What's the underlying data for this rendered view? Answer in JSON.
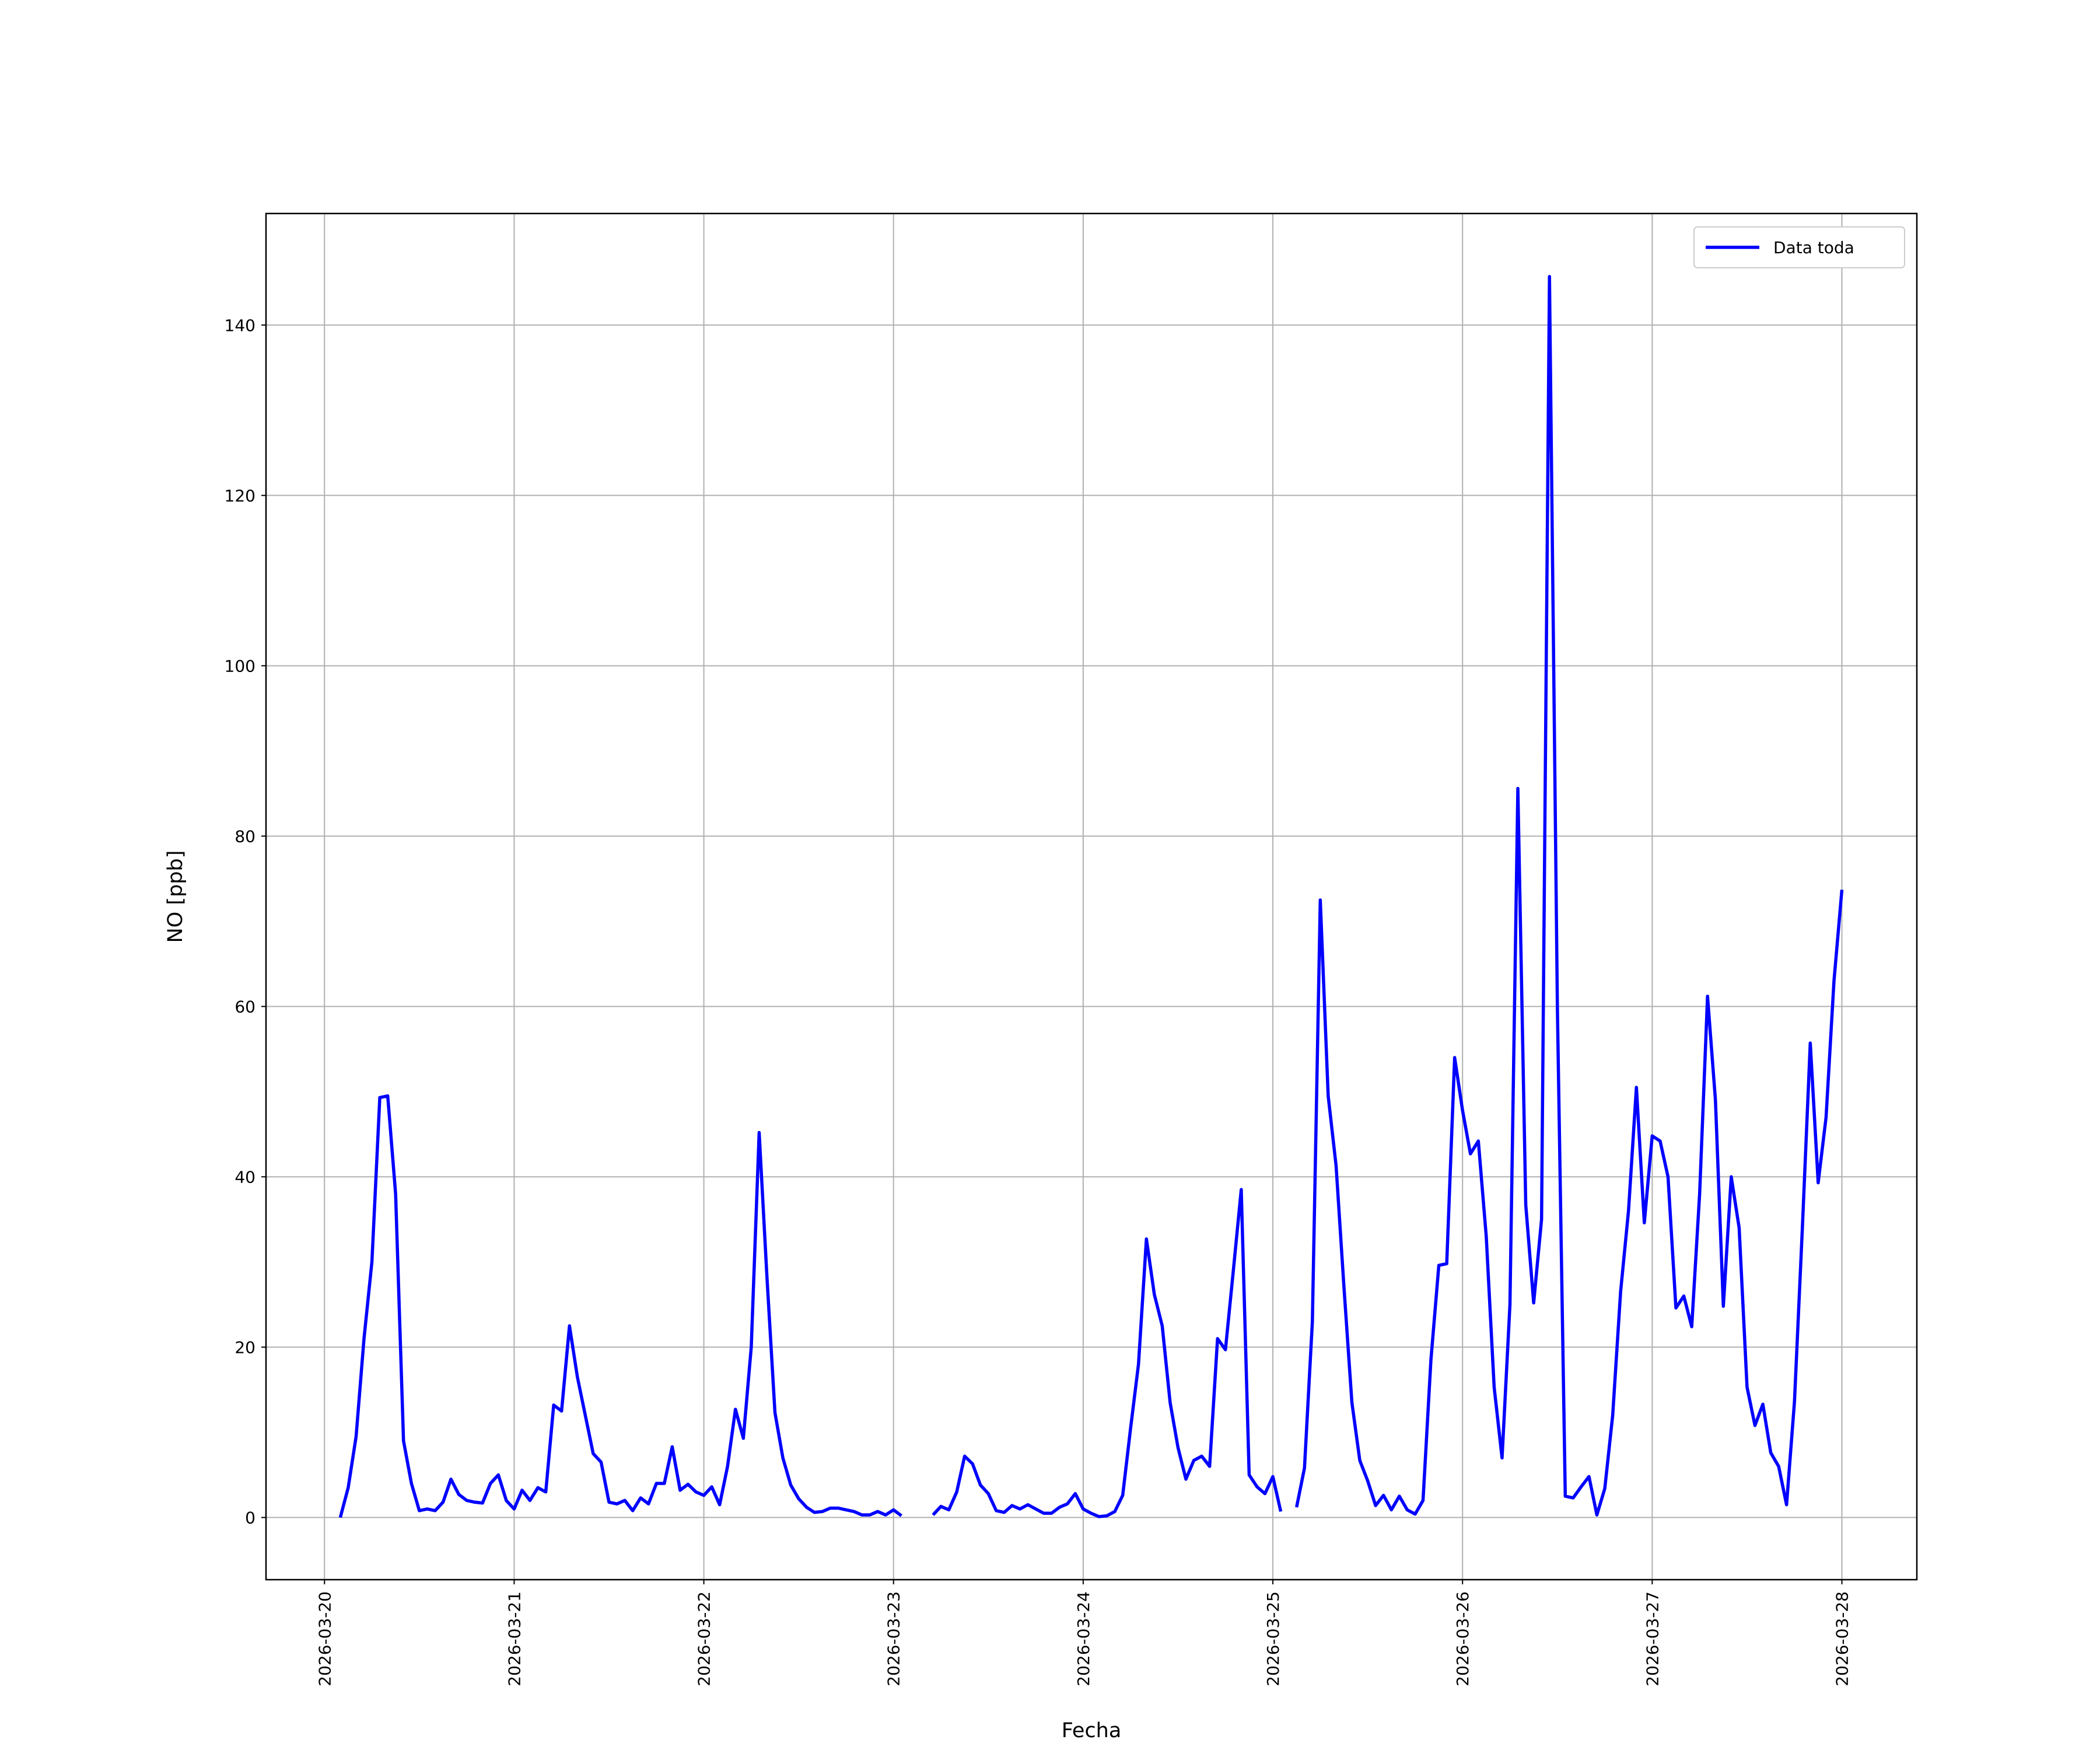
{
  "chart_data": {
    "type": "line",
    "xlabel": "Fecha",
    "ylabel": "NO [ppb]",
    "x": [
      "2026-03-20 02:00",
      "2026-03-20 03:00",
      "2026-03-20 04:00",
      "2026-03-20 05:00",
      "2026-03-20 06:00",
      "2026-03-20 07:00",
      "2026-03-20 08:00",
      "2026-03-20 09:00",
      "2026-03-20 10:00",
      "2026-03-20 11:00",
      "2026-03-20 12:00",
      "2026-03-20 13:00",
      "2026-03-20 14:00",
      "2026-03-20 15:00",
      "2026-03-20 16:00",
      "2026-03-20 17:00",
      "2026-03-20 18:00",
      "2026-03-20 19:00",
      "2026-03-20 20:00",
      "2026-03-20 21:00",
      "2026-03-20 22:00",
      "2026-03-20 23:00",
      "2026-03-21 00:00",
      "2026-03-21 01:00",
      "2026-03-21 02:00",
      "2026-03-21 03:00",
      "2026-03-21 04:00",
      "2026-03-21 05:00",
      "2026-03-21 06:00",
      "2026-03-21 07:00",
      "2026-03-21 08:00",
      "2026-03-21 09:00",
      "2026-03-21 10:00",
      "2026-03-21 11:00",
      "2026-03-21 12:00",
      "2026-03-21 13:00",
      "2026-03-21 14:00",
      "2026-03-21 15:00",
      "2026-03-21 16:00",
      "2026-03-21 17:00",
      "2026-03-21 18:00",
      "2026-03-21 19:00",
      "2026-03-21 20:00",
      "2026-03-21 21:00",
      "2026-03-21 22:00",
      "2026-03-21 23:00",
      "2026-03-22 00:00",
      "2026-03-22 01:00",
      "2026-03-22 02:00",
      "2026-03-22 03:00",
      "2026-03-22 04:00",
      "2026-03-22 05:00",
      "2026-03-22 06:00",
      "2026-03-22 07:00",
      "2026-03-22 08:00",
      "2026-03-22 09:00",
      "2026-03-22 10:00",
      "2026-03-22 11:00",
      "2026-03-22 12:00",
      "2026-03-22 13:00",
      "2026-03-22 14:00",
      "2026-03-22 15:00",
      "2026-03-22 16:00",
      "2026-03-22 17:00",
      "2026-03-22 18:00",
      "2026-03-22 19:00",
      "2026-03-22 20:00",
      "2026-03-22 21:00",
      "2026-03-22 22:00",
      "2026-03-22 23:00",
      "2026-03-23 00:00",
      "2026-03-23 01:00",
      "2026-03-23 02:00",
      "2026-03-23 03:00",
      "2026-03-23 04:00",
      "2026-03-23 05:00",
      "2026-03-23 06:00",
      "2026-03-23 07:00",
      "2026-03-23 08:00",
      "2026-03-23 09:00",
      "2026-03-23 10:00",
      "2026-03-23 11:00",
      "2026-03-23 12:00",
      "2026-03-23 13:00",
      "2026-03-23 14:00",
      "2026-03-23 15:00",
      "2026-03-23 16:00",
      "2026-03-23 17:00",
      "2026-03-23 18:00",
      "2026-03-23 19:00",
      "2026-03-23 20:00",
      "2026-03-23 21:00",
      "2026-03-23 22:00",
      "2026-03-23 23:00",
      "2026-03-24 00:00",
      "2026-03-24 01:00",
      "2026-03-24 02:00",
      "2026-03-24 03:00",
      "2026-03-24 04:00",
      "2026-03-24 05:00",
      "2026-03-24 06:00",
      "2026-03-24 07:00",
      "2026-03-24 08:00",
      "2026-03-24 09:00",
      "2026-03-24 10:00",
      "2026-03-24 11:00",
      "2026-03-24 12:00",
      "2026-03-24 13:00",
      "2026-03-24 14:00",
      "2026-03-24 15:00",
      "2026-03-24 16:00",
      "2026-03-24 17:00",
      "2026-03-24 18:00",
      "2026-03-24 19:00",
      "2026-03-24 20:00",
      "2026-03-24 21:00",
      "2026-03-24 22:00",
      "2026-03-24 23:00",
      "2026-03-25 00:00",
      "2026-03-25 01:00",
      "2026-03-25 02:00",
      "2026-03-25 03:00",
      "2026-03-25 04:00",
      "2026-03-25 05:00",
      "2026-03-25 06:00",
      "2026-03-25 07:00",
      "2026-03-25 08:00",
      "2026-03-25 09:00",
      "2026-03-25 10:00",
      "2026-03-25 11:00",
      "2026-03-25 12:00",
      "2026-03-25 13:00",
      "2026-03-25 14:00",
      "2026-03-25 15:00",
      "2026-03-25 16:00",
      "2026-03-25 17:00",
      "2026-03-25 18:00",
      "2026-03-25 19:00",
      "2026-03-25 20:00",
      "2026-03-25 21:00",
      "2026-03-25 22:00",
      "2026-03-25 23:00",
      "2026-03-26 00:00",
      "2026-03-26 01:00",
      "2026-03-26 02:00",
      "2026-03-26 03:00",
      "2026-03-26 04:00",
      "2026-03-26 05:00",
      "2026-03-26 06:00",
      "2026-03-26 07:00",
      "2026-03-26 08:00",
      "2026-03-26 09:00",
      "2026-03-26 10:00",
      "2026-03-26 11:00",
      "2026-03-26 12:00",
      "2026-03-26 13:00",
      "2026-03-26 14:00",
      "2026-03-26 15:00",
      "2026-03-26 16:00",
      "2026-03-26 17:00",
      "2026-03-26 18:00",
      "2026-03-26 19:00",
      "2026-03-26 20:00",
      "2026-03-26 21:00",
      "2026-03-26 22:00",
      "2026-03-26 23:00",
      "2026-03-27 00:00",
      "2026-03-27 01:00",
      "2026-03-27 02:00",
      "2026-03-27 03:00",
      "2026-03-27 04:00",
      "2026-03-27 05:00",
      "2026-03-27 06:00",
      "2026-03-27 07:00",
      "2026-03-27 08:00",
      "2026-03-27 09:00",
      "2026-03-27 10:00",
      "2026-03-27 11:00",
      "2026-03-27 12:00",
      "2026-03-27 13:00",
      "2026-03-27 14:00",
      "2026-03-27 15:00",
      "2026-03-27 16:00",
      "2026-03-27 17:00",
      "2026-03-27 18:00",
      "2026-03-27 19:00",
      "2026-03-27 20:00",
      "2026-03-27 21:00",
      "2026-03-27 22:00",
      "2026-03-27 23:00",
      "2026-03-28 00:00"
    ],
    "series": [
      {
        "name": "Data toda",
        "color": "#0000ff",
        "values": [
          0,
          3.5,
          9.5,
          21,
          30,
          49.3,
          49.5,
          38,
          9,
          4,
          0.8,
          1,
          0.8,
          1.8,
          4.5,
          2.7,
          2,
          1.8,
          1.7,
          4,
          5,
          2,
          1,
          3.2,
          2,
          3.5,
          3,
          13.2,
          12.5,
          22.5,
          16.5,
          12,
          7.5,
          6.5,
          1.8,
          1.6,
          2,
          0.8,
          2.3,
          1.6,
          4,
          4,
          8.3,
          3.2,
          3.9,
          3,
          2.6,
          3.6,
          1.5,
          6,
          12.7,
          9.3,
          20,
          45.2,
          28,
          12.3,
          7,
          3.8,
          2.2,
          1.2,
          0.6,
          0.7,
          1.1,
          1.1,
          0.9,
          0.7,
          0.3,
          0.3,
          0.7,
          0.3,
          0.9,
          0.2,
          null,
          null,
          null,
          0.3,
          1.3,
          0.9,
          3,
          7.2,
          6.3,
          3.8,
          2.8,
          0.8,
          0.6,
          1.4,
          1,
          1.5,
          1,
          0.5,
          0.5,
          1.2,
          1.6,
          2.8,
          1,
          0.5,
          0.1,
          0.2,
          0.7,
          2.6,
          10.5,
          18,
          32.7,
          26.2,
          22.5,
          13.5,
          8.2,
          4.5,
          6.7,
          7.2,
          6,
          21,
          19.7,
          29,
          38.5,
          5,
          3.6,
          2.8,
          4.8,
          0.7,
          null,
          1.2,
          5.8,
          23,
          72.5,
          49.5,
          41.3,
          27,
          13.5,
          6.7,
          4.3,
          1.4,
          2.6,
          0.9,
          2.5,
          0.9,
          0.4,
          2,
          18.5,
          29.6,
          29.8,
          54,
          47.8,
          42.7,
          44.2,
          33,
          15.3,
          7,
          25,
          85.6,
          36.7,
          25.2,
          35,
          145.7,
          60,
          2.5,
          2.3,
          3.6,
          4.8,
          0.3,
          3.4,
          12,
          26.5,
          36,
          50.5,
          34.6,
          44.8,
          44.2,
          40,
          24.6,
          26,
          22.4,
          38,
          61.2,
          49,
          24.8,
          40,
          34,
          15.3,
          10.8,
          13.3,
          7.6,
          6,
          1.5,
          13.6,
          34,
          55.7,
          39.3,
          47,
          63,
          73.7
        ]
      }
    ],
    "xlim": [
      "2026-03-19 16:36",
      "2026-03-28 09:29"
    ],
    "xticks": [
      "2026-03-20",
      "2026-03-21",
      "2026-03-22",
      "2026-03-23",
      "2026-03-24",
      "2026-03-25",
      "2026-03-26",
      "2026-03-27",
      "2026-03-28"
    ],
    "ylim": [
      -7.3,
      153.1
    ],
    "yticks": [
      0,
      20,
      40,
      60,
      80,
      100,
      120,
      140
    ],
    "grid": true,
    "legend": "upper right"
  }
}
